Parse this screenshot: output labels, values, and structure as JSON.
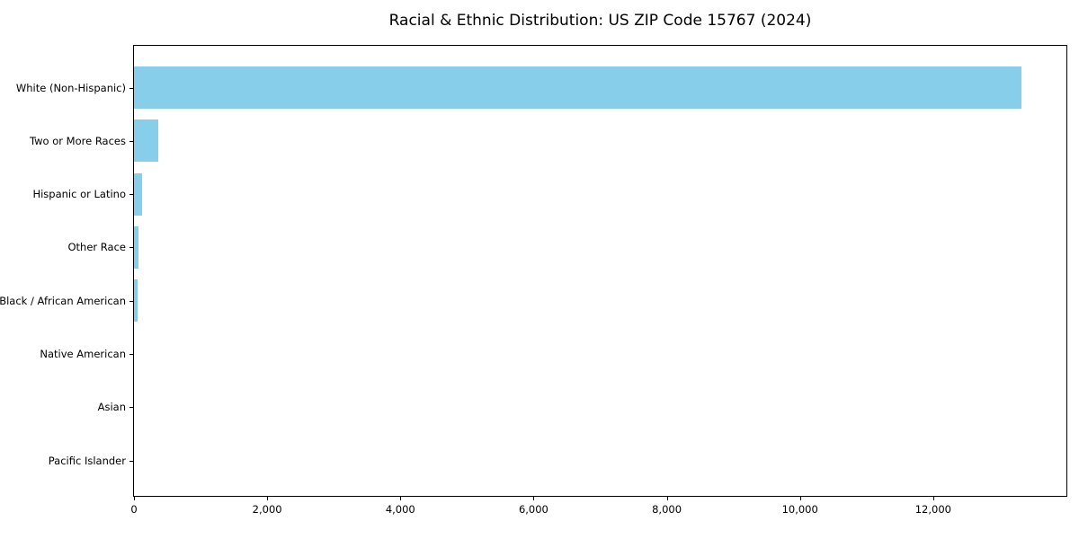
{
  "chart_data": {
    "type": "bar",
    "orientation": "horizontal",
    "title": "Racial & Ethnic Distribution: US ZIP Code 15767 (2024)",
    "xlabel": "",
    "ylabel": "",
    "categories": [
      "White (Non-Hispanic)",
      "Two or More Races",
      "Hispanic or Latino",
      "Other Race",
      "Black / African American",
      "Native American",
      "Asian",
      "Pacific Islander"
    ],
    "values": [
      13330,
      360,
      115,
      70,
      55,
      0,
      0,
      0
    ],
    "xlim": [
      0,
      14000
    ],
    "xticks": [
      0,
      2000,
      4000,
      6000,
      8000,
      10000,
      12000
    ],
    "xtick_labels": [
      "0",
      "2,000",
      "4,000",
      "6,000",
      "8,000",
      "10,000",
      "12,000"
    ],
    "bar_color": "#87CEEB",
    "grid": false,
    "legend": null,
    "background_color": "#ffffff",
    "spine_color": "#000000"
  }
}
